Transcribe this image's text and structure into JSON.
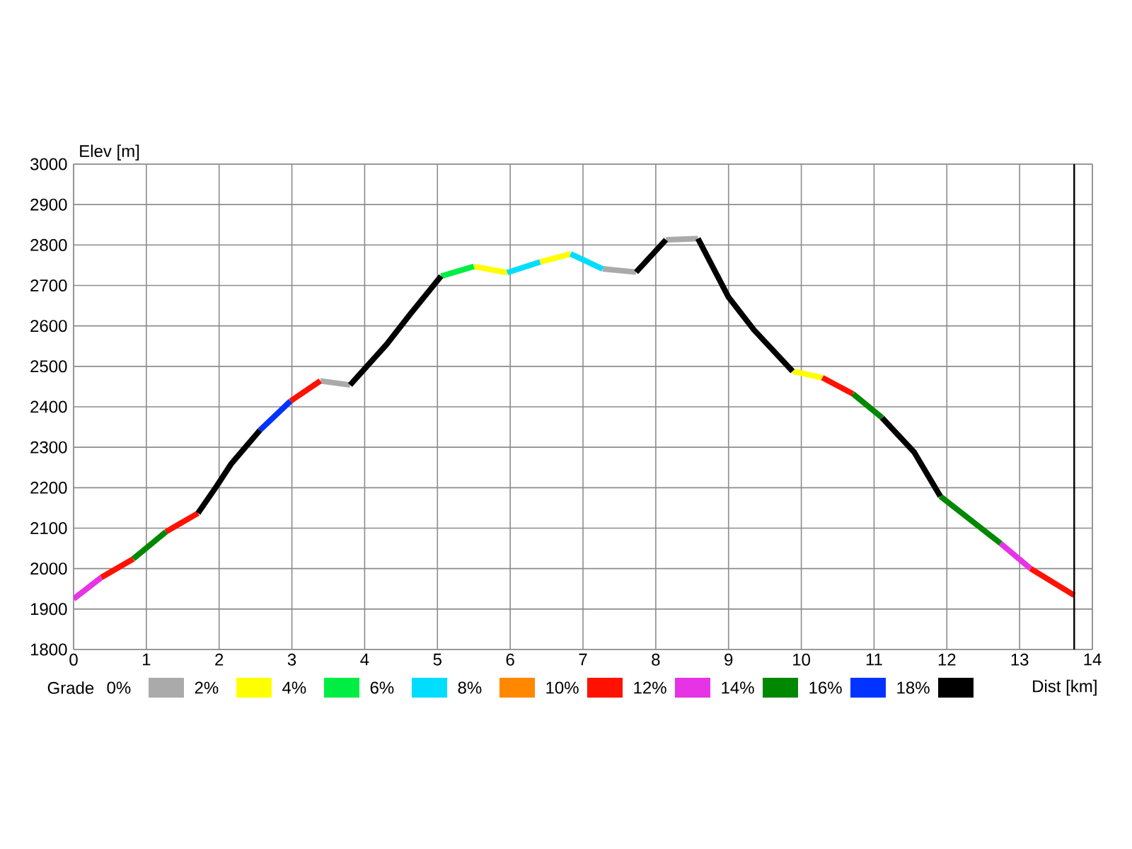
{
  "chart_data": {
    "type": "line",
    "xlabel": "Dist [km]",
    "ylabel": "Elev [m]",
    "legend_title": "Grade",
    "xlim": [
      0,
      14
    ],
    "ylim": [
      1800,
      3000
    ],
    "xticks": [
      0,
      1,
      2,
      3,
      4,
      5,
      6,
      7,
      8,
      9,
      10,
      11,
      12,
      13,
      14
    ],
    "yticks": [
      1800,
      1900,
      2000,
      2100,
      2200,
      2300,
      2400,
      2500,
      2600,
      2700,
      2800,
      2900,
      3000
    ],
    "grid": true,
    "legend": "bottom",
    "marker": "none",
    "line_style": "solid",
    "ref_lines": [
      {
        "axis": "x",
        "value": 13.75,
        "color": "#000000"
      }
    ],
    "series": [
      {
        "name": "0%",
        "color": "#aaaaaa",
        "x": [
          3.39,
          3.8,
          null,
          7.27,
          7.73,
          null,
          8.14,
          8.58
        ],
        "values": [
          2464,
          2454,
          null,
          2741,
          2733,
          null,
          2813,
          2816
        ]
      },
      {
        "name": "2%",
        "color": "#ffff00",
        "x": [
          5.5,
          5.96,
          null,
          6.41,
          6.83,
          null,
          9.88,
          10.29
        ],
        "values": [
          2747,
          2732,
          null,
          2758,
          2778,
          null,
          2488,
          2472
        ]
      },
      {
        "name": "4%",
        "color": "#00ee44",
        "x": [
          5.05,
          5.5
        ],
        "values": [
          2723,
          2747
        ]
      },
      {
        "name": "6%",
        "color": "#00ddff",
        "x": [
          5.96,
          6.41,
          null,
          6.83,
          7.27
        ],
        "values": [
          2732,
          2758,
          null,
          2778,
          2741
        ]
      },
      {
        "name": "8%",
        "color": "#ff8800"
      },
      {
        "name": "10%",
        "color": "#ff1100",
        "x": [
          0.38,
          0.82,
          null,
          1.27,
          1.71,
          null,
          2.98,
          3.39,
          null,
          10.29,
          10.71,
          null,
          13.15,
          13.75
        ],
        "values": [
          1978,
          2024,
          null,
          2091,
          2137,
          null,
          2414,
          2464,
          null,
          2472,
          2432,
          null,
          2000,
          1934
        ]
      },
      {
        "name": "12%",
        "color": "#e633e6",
        "x": [
          0,
          0.38,
          null,
          12.74,
          13.15
        ],
        "values": [
          1925,
          1978,
          null,
          2062,
          2000
        ]
      },
      {
        "name": "14%",
        "color": "#008800",
        "x": [
          0.82,
          1.27,
          null,
          10.71,
          11.11,
          null,
          11.91,
          12.74
        ],
        "values": [
          2024,
          2091,
          null,
          2432,
          2373,
          null,
          2179,
          2062
        ]
      },
      {
        "name": "16%",
        "color": "#0033ff",
        "x": [
          2.56,
          2.98
        ],
        "values": [
          2342,
          2414
        ]
      },
      {
        "name": "18%",
        "color": "#000000",
        "x": [
          1.71,
          1.97,
          2.17,
          2.56,
          null,
          3.8,
          4.3,
          4.63,
          5.05,
          null,
          7.73,
          8.14,
          null,
          8.58,
          9.0,
          9.35,
          9.88,
          null,
          11.11,
          11.55,
          11.91
        ],
        "values": [
          2137,
          2205,
          2260,
          2342,
          null,
          2454,
          2554,
          2630,
          2723,
          null,
          2733,
          2813,
          null,
          2816,
          2671,
          2590,
          2488,
          null,
          2373,
          2288,
          2179
        ]
      }
    ]
  }
}
